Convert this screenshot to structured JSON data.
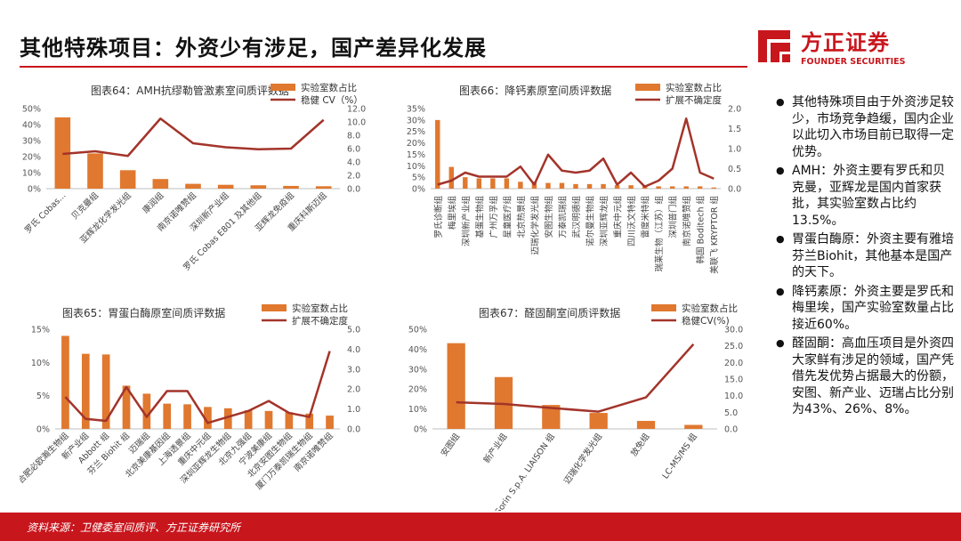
{
  "page": {
    "title": "其他特殊项目：外资少有涉足，国产差异化发展",
    "source": "资料来源：卫健委室间质评、方正证券研究所"
  },
  "logo": {
    "cn": "方正证券",
    "en": "FOUNDER SECURITIES"
  },
  "colors": {
    "bar": "#e0782f",
    "line": "#a3342a",
    "brand": "#c8161d"
  },
  "bullets": [
    "其他特殊项目由于外资涉足较少，市场竞争趋缓，国内企业以此切入市场目前已取得一定优势。",
    "AMH：外资主要有罗氏和贝克曼，亚辉龙是国内首家获批，其实验室数占比约13.5%。",
    "胃蛋白酶原：外资主要有雅培芬兰Biohit，其他基本是国产的天下。",
    "降钙素原：外资主要是罗氏和梅里埃，国产实验室数量占比接近60%。",
    "醛固酮：高血压项目是外资四大家鲜有涉足的领域，国产凭借先发优势占据最大的份额，安图、新产业、迈瑞占比分别为43%、26%、8%。"
  ],
  "chart_data": [
    {
      "type": "bar",
      "title": "图表64：AMH抗缪勒管激素室间质评数据",
      "categories": [
        "罗氏 Cobas...",
        "贝克曼组",
        "亚辉龙化学发光组",
        "康润组",
        "南京诺唯赞组",
        "深圳新产业组",
        "罗氏 Cobas E801 及其他组",
        "亚辉龙免疫组",
        "重庆科斯迈组"
      ],
      "series": [
        {
          "name": "实验室数占比",
          "kind": "bar",
          "axis": "left",
          "values": [
            44.5,
            22,
            11.5,
            6,
            3,
            2.4,
            2.1,
            1.7,
            1.5
          ]
        },
        {
          "name": "稳健 CV（%）",
          "kind": "line",
          "axis": "right",
          "values": [
            5.2,
            5.6,
            4.9,
            10.5,
            6.8,
            6.2,
            5.9,
            6.0,
            10.3
          ]
        }
      ],
      "ylim": [
        0,
        50
      ],
      "yticks": [
        "0%",
        "10%",
        "20%",
        "30%",
        "40%",
        "50%"
      ],
      "y2lim": [
        0,
        12
      ],
      "y2ticks": [
        "0.0",
        "2.0",
        "4.0",
        "6.0",
        "8.0",
        "10.0",
        "12.0"
      ]
    },
    {
      "type": "bar",
      "title": "图表65：胃蛋白酶原室间质评数据",
      "categories": [
        "合肥必欧瀚生物组",
        "新产业组",
        "Abbott 组",
        "芬兰 Biohit 组",
        "迈瑞组",
        "北京美康基因组",
        "上海透景组",
        "重庆中元组",
        "深圳亚辉龙生物组",
        "北京九强组",
        "宁波美康组",
        "北京安图生物组",
        "厦门万泰凯瑞生物组",
        "南京诺唯赞组"
      ],
      "series": [
        {
          "name": "实验室数占比",
          "kind": "bar",
          "axis": "left",
          "values": [
            14,
            11.3,
            11.2,
            6.5,
            5.3,
            3.8,
            3.7,
            3.3,
            3.1,
            2.8,
            2.7,
            2.5,
            2.3,
            2.0
          ]
        },
        {
          "name": "扩展不确定度",
          "kind": "line",
          "axis": "right",
          "values": [
            1.6,
            0.5,
            0.4,
            2.1,
            0.6,
            1.9,
            1.9,
            0.3,
            0.6,
            0.9,
            1.4,
            0.8,
            0.6,
            3.9
          ]
        }
      ],
      "ylim": [
        0,
        15
      ],
      "yticks": [
        "0%",
        "5%",
        "10%",
        "15%"
      ],
      "y2lim": [
        0,
        5
      ],
      "y2ticks": [
        "0.0",
        "1.0",
        "2.0",
        "3.0",
        "4.0",
        "5.0"
      ]
    },
    {
      "type": "bar",
      "title": "图表66：降钙素原室间质评数据",
      "categories": [
        "罗氏诊断组",
        "梅里埃组",
        "深圳新产业组",
        "基蛋生物组",
        "广州万孚组",
        "星童医疗组",
        "北京热景组",
        "迈瑞化学发光组",
        "安图生物组",
        "万泰凯瑞组",
        "武汉明德组",
        "诺尔曼生物组",
        "深圳亚辉龙组",
        "重庆中元组",
        "四川沃文特组",
        "雷度米特组",
        "瑞莱生物（江苏）组",
        "深圳普门组",
        "南京诺唯赞组",
        "韩国 Boditech 组",
        "美联飞 KRYPTOR 组"
      ],
      "series": [
        {
          "name": "实验室数占比",
          "kind": "bar",
          "axis": "left",
          "values": [
            30,
            9.5,
            5,
            4.5,
            4.5,
            4.5,
            3,
            3,
            2.5,
            2.5,
            2,
            2,
            2,
            1.5,
            1.5,
            1.5,
            1,
            1,
            1,
            1,
            0.5
          ]
        },
        {
          "name": "扩展不确定度",
          "kind": "line",
          "axis": "right",
          "values": [
            0.1,
            0.2,
            0.4,
            0.3,
            0.3,
            0.3,
            0.55,
            0.1,
            0.85,
            0.45,
            0.4,
            0.45,
            0.75,
            0.1,
            0.4,
            0.05,
            0.2,
            0.5,
            1.75,
            0.4,
            0.25
          ]
        }
      ],
      "ylim": [
        0,
        35
      ],
      "yticks": [
        "0%",
        "5%",
        "10%",
        "15%",
        "20%",
        "25%",
        "30%",
        "35%"
      ],
      "y2lim": [
        0,
        2
      ],
      "y2ticks": [
        "0.0",
        "0.5",
        "1.0",
        "1.5",
        "2.0"
      ]
    },
    {
      "type": "bar",
      "title": "图表67：醛固酮室间质评数据",
      "categories": [
        "安图组",
        "新产业组",
        "DiaSorin S.p.A. LIAISON 组",
        "迈瑞化学发光组",
        "放免组",
        "LC-MS/MS 组"
      ],
      "series": [
        {
          "name": "实验室数占比",
          "kind": "bar",
          "axis": "left",
          "values": [
            43,
            26,
            12,
            8,
            4,
            2
          ]
        },
        {
          "name": "稳健CV(%)",
          "kind": "line",
          "axis": "right",
          "values": [
            8,
            7.5,
            6.3,
            5.2,
            9.5,
            25.5
          ]
        }
      ],
      "ylim": [
        0,
        50
      ],
      "yticks": [
        "0%",
        "10%",
        "20%",
        "30%",
        "40%",
        "50%"
      ],
      "y2lim": [
        0,
        30
      ],
      "y2ticks": [
        "0.0",
        "5.0",
        "10.0",
        "15.0",
        "20.0",
        "25.0",
        "30.0"
      ]
    }
  ]
}
